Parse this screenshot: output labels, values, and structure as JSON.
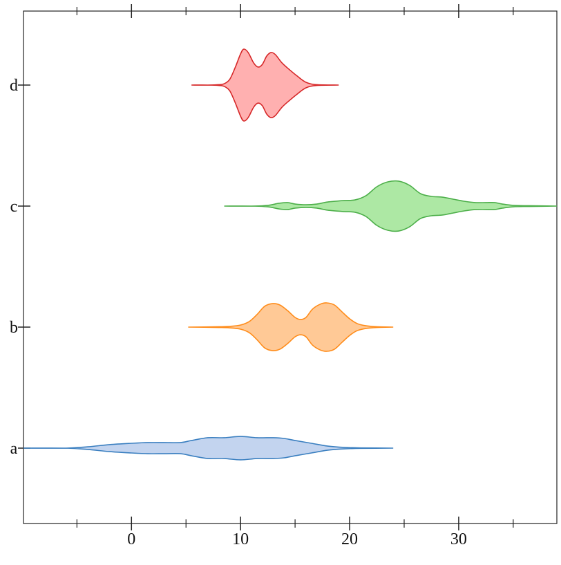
{
  "chart_data": {
    "type": "violin",
    "categories": [
      "a",
      "b",
      "c",
      "d"
    ],
    "xlim": [
      -9.9,
      39
    ],
    "xticks": [
      0,
      10,
      20,
      30
    ],
    "xminor_ticks": [
      -5,
      5,
      15,
      25,
      35
    ],
    "series": [
      {
        "name": "a",
        "color": "#3a7fc0",
        "fill": "#c3d4ef",
        "x": [
          -9.9,
          -6,
          -4,
          -2,
          0,
          1.5,
          3,
          4.5,
          5.5,
          7,
          8.5,
          10,
          11.5,
          13,
          14,
          15,
          16.5,
          18,
          19.5,
          21,
          24
        ],
        "widths": [
          0,
          0,
          0.011,
          0.029,
          0.04,
          0.046,
          0.046,
          0.046,
          0.063,
          0.086,
          0.086,
          0.097,
          0.086,
          0.086,
          0.08,
          0.063,
          0.04,
          0.017,
          0.006,
          0.002,
          0
        ]
      },
      {
        "name": "b",
        "color": "#ff8c1a",
        "fill": "#ffc996",
        "x": [
          5.2,
          8,
          9,
          10,
          10.8,
          11.5,
          12.2,
          12.9,
          13.6,
          14.3,
          15,
          15.5,
          16,
          16.6,
          17.3,
          17.9,
          18.6,
          19.3,
          20,
          20.7,
          21.5,
          22.5,
          24
        ],
        "widths": [
          0,
          0.003,
          0.006,
          0.017,
          0.046,
          0.103,
          0.171,
          0.194,
          0.183,
          0.137,
          0.08,
          0.063,
          0.08,
          0.149,
          0.189,
          0.2,
          0.183,
          0.126,
          0.069,
          0.029,
          0.011,
          0.003,
          0
        ]
      },
      {
        "name": "c",
        "color": "#4daf4a",
        "fill": "#ade8a4",
        "x": [
          8.5,
          11,
          12.5,
          13.5,
          14.3,
          15,
          16,
          17,
          18,
          19.5,
          20.5,
          21.5,
          22.5,
          23.5,
          24.5,
          25.5,
          26.5,
          27.5,
          28.5,
          29.5,
          30.5,
          31.5,
          32.5,
          33.3,
          34,
          35,
          36.5,
          39
        ],
        "widths": [
          0,
          0,
          0.006,
          0.023,
          0.029,
          0.017,
          0.011,
          0.017,
          0.034,
          0.046,
          0.051,
          0.086,
          0.16,
          0.2,
          0.206,
          0.171,
          0.103,
          0.08,
          0.074,
          0.057,
          0.04,
          0.029,
          0.029,
          0.029,
          0.017,
          0.006,
          0.003,
          0
        ]
      },
      {
        "name": "d",
        "color": "#d62728",
        "fill": "#ffb0b0",
        "x": [
          5.5,
          7,
          8,
          8.5,
          9,
          9.5,
          10,
          10.3,
          10.7,
          11.2,
          11.6,
          12,
          12.4,
          12.8,
          13.2,
          13.8,
          14.5,
          15.2,
          16,
          17,
          19
        ],
        "widths": [
          0,
          0,
          0.003,
          0.011,
          0.046,
          0.143,
          0.257,
          0.297,
          0.269,
          0.183,
          0.149,
          0.171,
          0.24,
          0.269,
          0.251,
          0.183,
          0.126,
          0.074,
          0.023,
          0.003,
          0
        ]
      }
    ]
  }
}
